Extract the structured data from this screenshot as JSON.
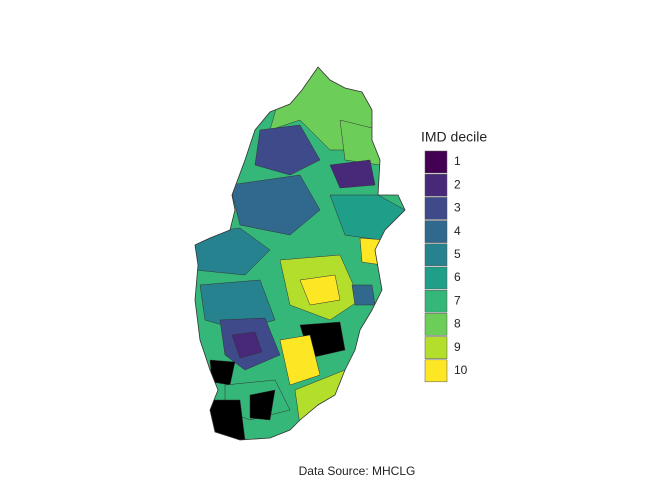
{
  "legend": {
    "title": "IMD decile",
    "items": [
      {
        "label": "1",
        "color": "#440154"
      },
      {
        "label": "2",
        "color": "#482878"
      },
      {
        "label": "3",
        "color": "#3e4a89"
      },
      {
        "label": "4",
        "color": "#31688e"
      },
      {
        "label": "5",
        "color": "#26828e"
      },
      {
        "label": "6",
        "color": "#1f9e89"
      },
      {
        "label": "7",
        "color": "#35b779"
      },
      {
        "label": "8",
        "color": "#6dcd59"
      },
      {
        "label": "9",
        "color": "#b4de2c"
      },
      {
        "label": "10",
        "color": "#fde725"
      }
    ]
  },
  "caption": "Data Source: MHCLG"
}
